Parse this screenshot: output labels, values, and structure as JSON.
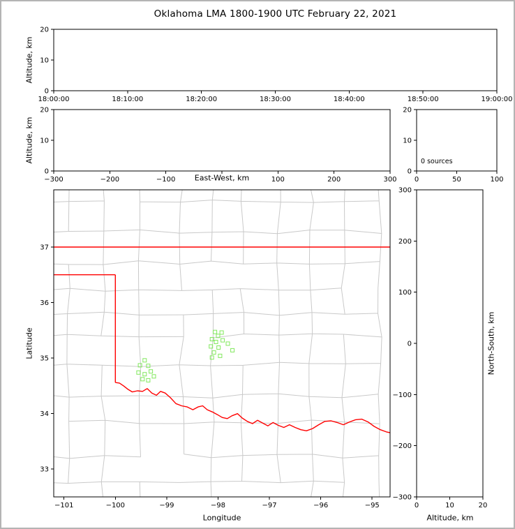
{
  "title": "Oklahoma LMA 1800-1900 UTC February 22, 2021",
  "chart_data": {
    "type": "scatter",
    "title": "Oklahoma LMA 1800-1900 UTC February 22, 2021",
    "panels": {
      "time_height": {
        "ylabel": "Altitude, km",
        "ylim": [
          0,
          20
        ],
        "yticks": [
          0,
          10,
          20
        ],
        "ytick_labels": [
          "0",
          "10",
          "20"
        ],
        "xlim": [
          0,
          6
        ],
        "xticks": [
          0,
          1,
          2,
          3,
          4,
          5,
          6
        ],
        "xtick_labels": [
          "18:00:00",
          "18:10:00",
          "18:20:00",
          "18:30:00",
          "18:40:00",
          "18:50:00",
          "19:00:00"
        ],
        "points": []
      },
      "ew_height": {
        "ylabel": "Altitude, km",
        "xlabel": "East-West, km",
        "ylim": [
          0,
          20
        ],
        "yticks": [
          0,
          10,
          20
        ],
        "ytick_labels": [
          "0",
          "10",
          "20"
        ],
        "xlim": [
          -300,
          300
        ],
        "xticks": [
          -300,
          -200,
          -100,
          0,
          100,
          200,
          300
        ],
        "xtick_labels": [
          "−300",
          "−200",
          "−100",
          "",
          "100",
          "200",
          "300"
        ],
        "points": []
      },
      "source_histogram": {
        "annotation": "0 sources",
        "xlim": [
          0,
          100
        ],
        "xticks": [
          0,
          50,
          100
        ],
        "xtick_labels": [
          "0",
          "50",
          "100"
        ],
        "ylim": [
          0,
          20
        ],
        "yticks": [
          0,
          10,
          20
        ],
        "ytick_labels": [
          "0",
          "10",
          "20"
        ],
        "points": []
      },
      "plan_view": {
        "xlabel": "Longitude",
        "ylabel": "Latitude",
        "xlim": [
          -101.2,
          -94.65
        ],
        "ylim": [
          32.5,
          38.03
        ],
        "xticks": [
          -101,
          -100,
          -99,
          -98,
          -97,
          -96,
          -95
        ],
        "xtick_labels": [
          "−101",
          "−100",
          "−99",
          "−98",
          "−97",
          "−96",
          "−95"
        ],
        "yticks": [
          33,
          34,
          35,
          36,
          37
        ],
        "ytick_labels": [
          "33",
          "34",
          "35",
          "36",
          "37"
        ],
        "marker": {
          "shape": "square",
          "color": "#82e85e",
          "size": 5
        },
        "points": [
          [
            -98.06,
            35.47
          ],
          [
            -97.93,
            35.46
          ],
          [
            -98.0,
            35.4
          ],
          [
            -98.12,
            35.34
          ],
          [
            -97.91,
            35.32
          ],
          [
            -98.04,
            35.29
          ],
          [
            -98.14,
            35.21
          ],
          [
            -97.99,
            35.19
          ],
          [
            -97.81,
            35.26
          ],
          [
            -97.72,
            35.14
          ],
          [
            -98.08,
            35.1
          ],
          [
            -97.96,
            35.04
          ],
          [
            -98.12,
            35.01
          ],
          [
            -99.43,
            34.96
          ],
          [
            -99.52,
            34.87
          ],
          [
            -99.36,
            34.86
          ],
          [
            -99.55,
            34.74
          ],
          [
            -99.43,
            34.71
          ],
          [
            -99.31,
            34.76
          ],
          [
            -99.47,
            34.62
          ],
          [
            -99.36,
            34.6
          ],
          [
            -99.25,
            34.67
          ]
        ]
      },
      "ns_height": {
        "xlabel": "Altitude, km",
        "ylabel": "North-South, km",
        "xlim": [
          0,
          20
        ],
        "xticks": [
          0,
          10,
          20
        ],
        "xtick_labels": [
          "0",
          "10",
          "20"
        ],
        "ylim": [
          -300,
          300
        ],
        "yticks": [
          -300,
          -200,
          -100,
          0,
          100,
          200,
          300
        ],
        "ytick_labels": [
          "−300",
          "−200",
          "−100",
          "0",
          "100",
          "200",
          "300"
        ],
        "points": []
      }
    },
    "map_layers": {
      "county_line_color": "#c9c9c9",
      "state_line_color": "#ff0000",
      "state_border": [
        [
          [
            -101.2,
            37.0
          ],
          [
            -94.65,
            37.0
          ]
        ],
        [
          [
            -101.2,
            36.5
          ],
          [
            -100.0,
            36.5
          ]
        ],
        [
          [
            -100.0,
            36.5
          ],
          [
            -100.0,
            34.56
          ]
        ]
      ],
      "red_river": [
        [
          -100.0,
          34.56
        ],
        [
          -99.92,
          34.55
        ],
        [
          -99.84,
          34.5
        ],
        [
          -99.76,
          34.44
        ],
        [
          -99.67,
          34.39
        ],
        [
          -99.57,
          34.41
        ],
        [
          -99.47,
          34.4
        ],
        [
          -99.38,
          34.45
        ],
        [
          -99.29,
          34.37
        ],
        [
          -99.2,
          34.33
        ],
        [
          -99.12,
          34.4
        ],
        [
          -99.03,
          34.37
        ],
        [
          -98.93,
          34.29
        ],
        [
          -98.82,
          34.18
        ],
        [
          -98.71,
          34.14
        ],
        [
          -98.6,
          34.12
        ],
        [
          -98.49,
          34.07
        ],
        [
          -98.39,
          34.12
        ],
        [
          -98.3,
          34.14
        ],
        [
          -98.21,
          34.07
        ],
        [
          -98.11,
          34.03
        ],
        [
          -98.01,
          33.98
        ],
        [
          -97.92,
          33.93
        ],
        [
          -97.82,
          33.91
        ],
        [
          -97.73,
          33.96
        ],
        [
          -97.62,
          34.0
        ],
        [
          -97.53,
          33.92
        ],
        [
          -97.43,
          33.86
        ],
        [
          -97.33,
          33.82
        ],
        [
          -97.23,
          33.88
        ],
        [
          -97.13,
          33.83
        ],
        [
          -97.03,
          33.78
        ],
        [
          -96.93,
          33.84
        ],
        [
          -96.83,
          33.79
        ],
        [
          -96.72,
          33.75
        ],
        [
          -96.61,
          33.8
        ],
        [
          -96.5,
          33.75
        ],
        [
          -96.39,
          33.71
        ],
        [
          -96.28,
          33.69
        ],
        [
          -96.16,
          33.73
        ],
        [
          -96.04,
          33.8
        ],
        [
          -95.92,
          33.86
        ],
        [
          -95.8,
          33.87
        ],
        [
          -95.68,
          33.84
        ],
        [
          -95.56,
          33.8
        ],
        [
          -95.44,
          33.85
        ],
        [
          -95.32,
          33.89
        ],
        [
          -95.2,
          33.9
        ],
        [
          -95.08,
          33.85
        ],
        [
          -94.96,
          33.77
        ],
        [
          -94.84,
          33.71
        ],
        [
          -94.72,
          33.67
        ],
        [
          -94.62,
          33.65
        ]
      ]
    }
  }
}
